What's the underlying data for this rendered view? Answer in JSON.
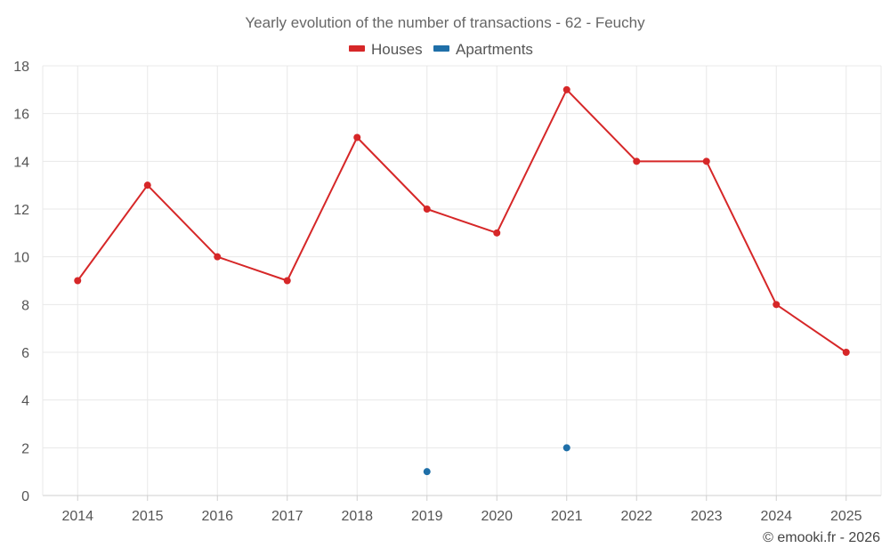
{
  "chart_data": {
    "type": "line",
    "title": "Yearly evolution of the number of transactions - 62 - Feuchy",
    "categories": [
      "2014",
      "2015",
      "2016",
      "2017",
      "2018",
      "2019",
      "2020",
      "2021",
      "2022",
      "2023",
      "2024",
      "2025"
    ],
    "series": [
      {
        "name": "Houses",
        "color": "#d62728",
        "values": [
          9,
          13,
          10,
          9,
          15,
          12,
          11,
          17,
          14,
          14,
          8,
          6
        ]
      },
      {
        "name": "Apartments",
        "color": "#1f6fa8",
        "values": [
          null,
          null,
          null,
          null,
          null,
          1,
          null,
          2,
          null,
          null,
          null,
          null
        ]
      }
    ],
    "ylim": [
      0,
      18
    ],
    "yticks": [
      0,
      2,
      4,
      6,
      8,
      10,
      12,
      14,
      16,
      18
    ],
    "xlabel": "",
    "ylabel": "",
    "grid": true,
    "legend_position": "top-center"
  },
  "credit": "© emooki.fr - 2026"
}
